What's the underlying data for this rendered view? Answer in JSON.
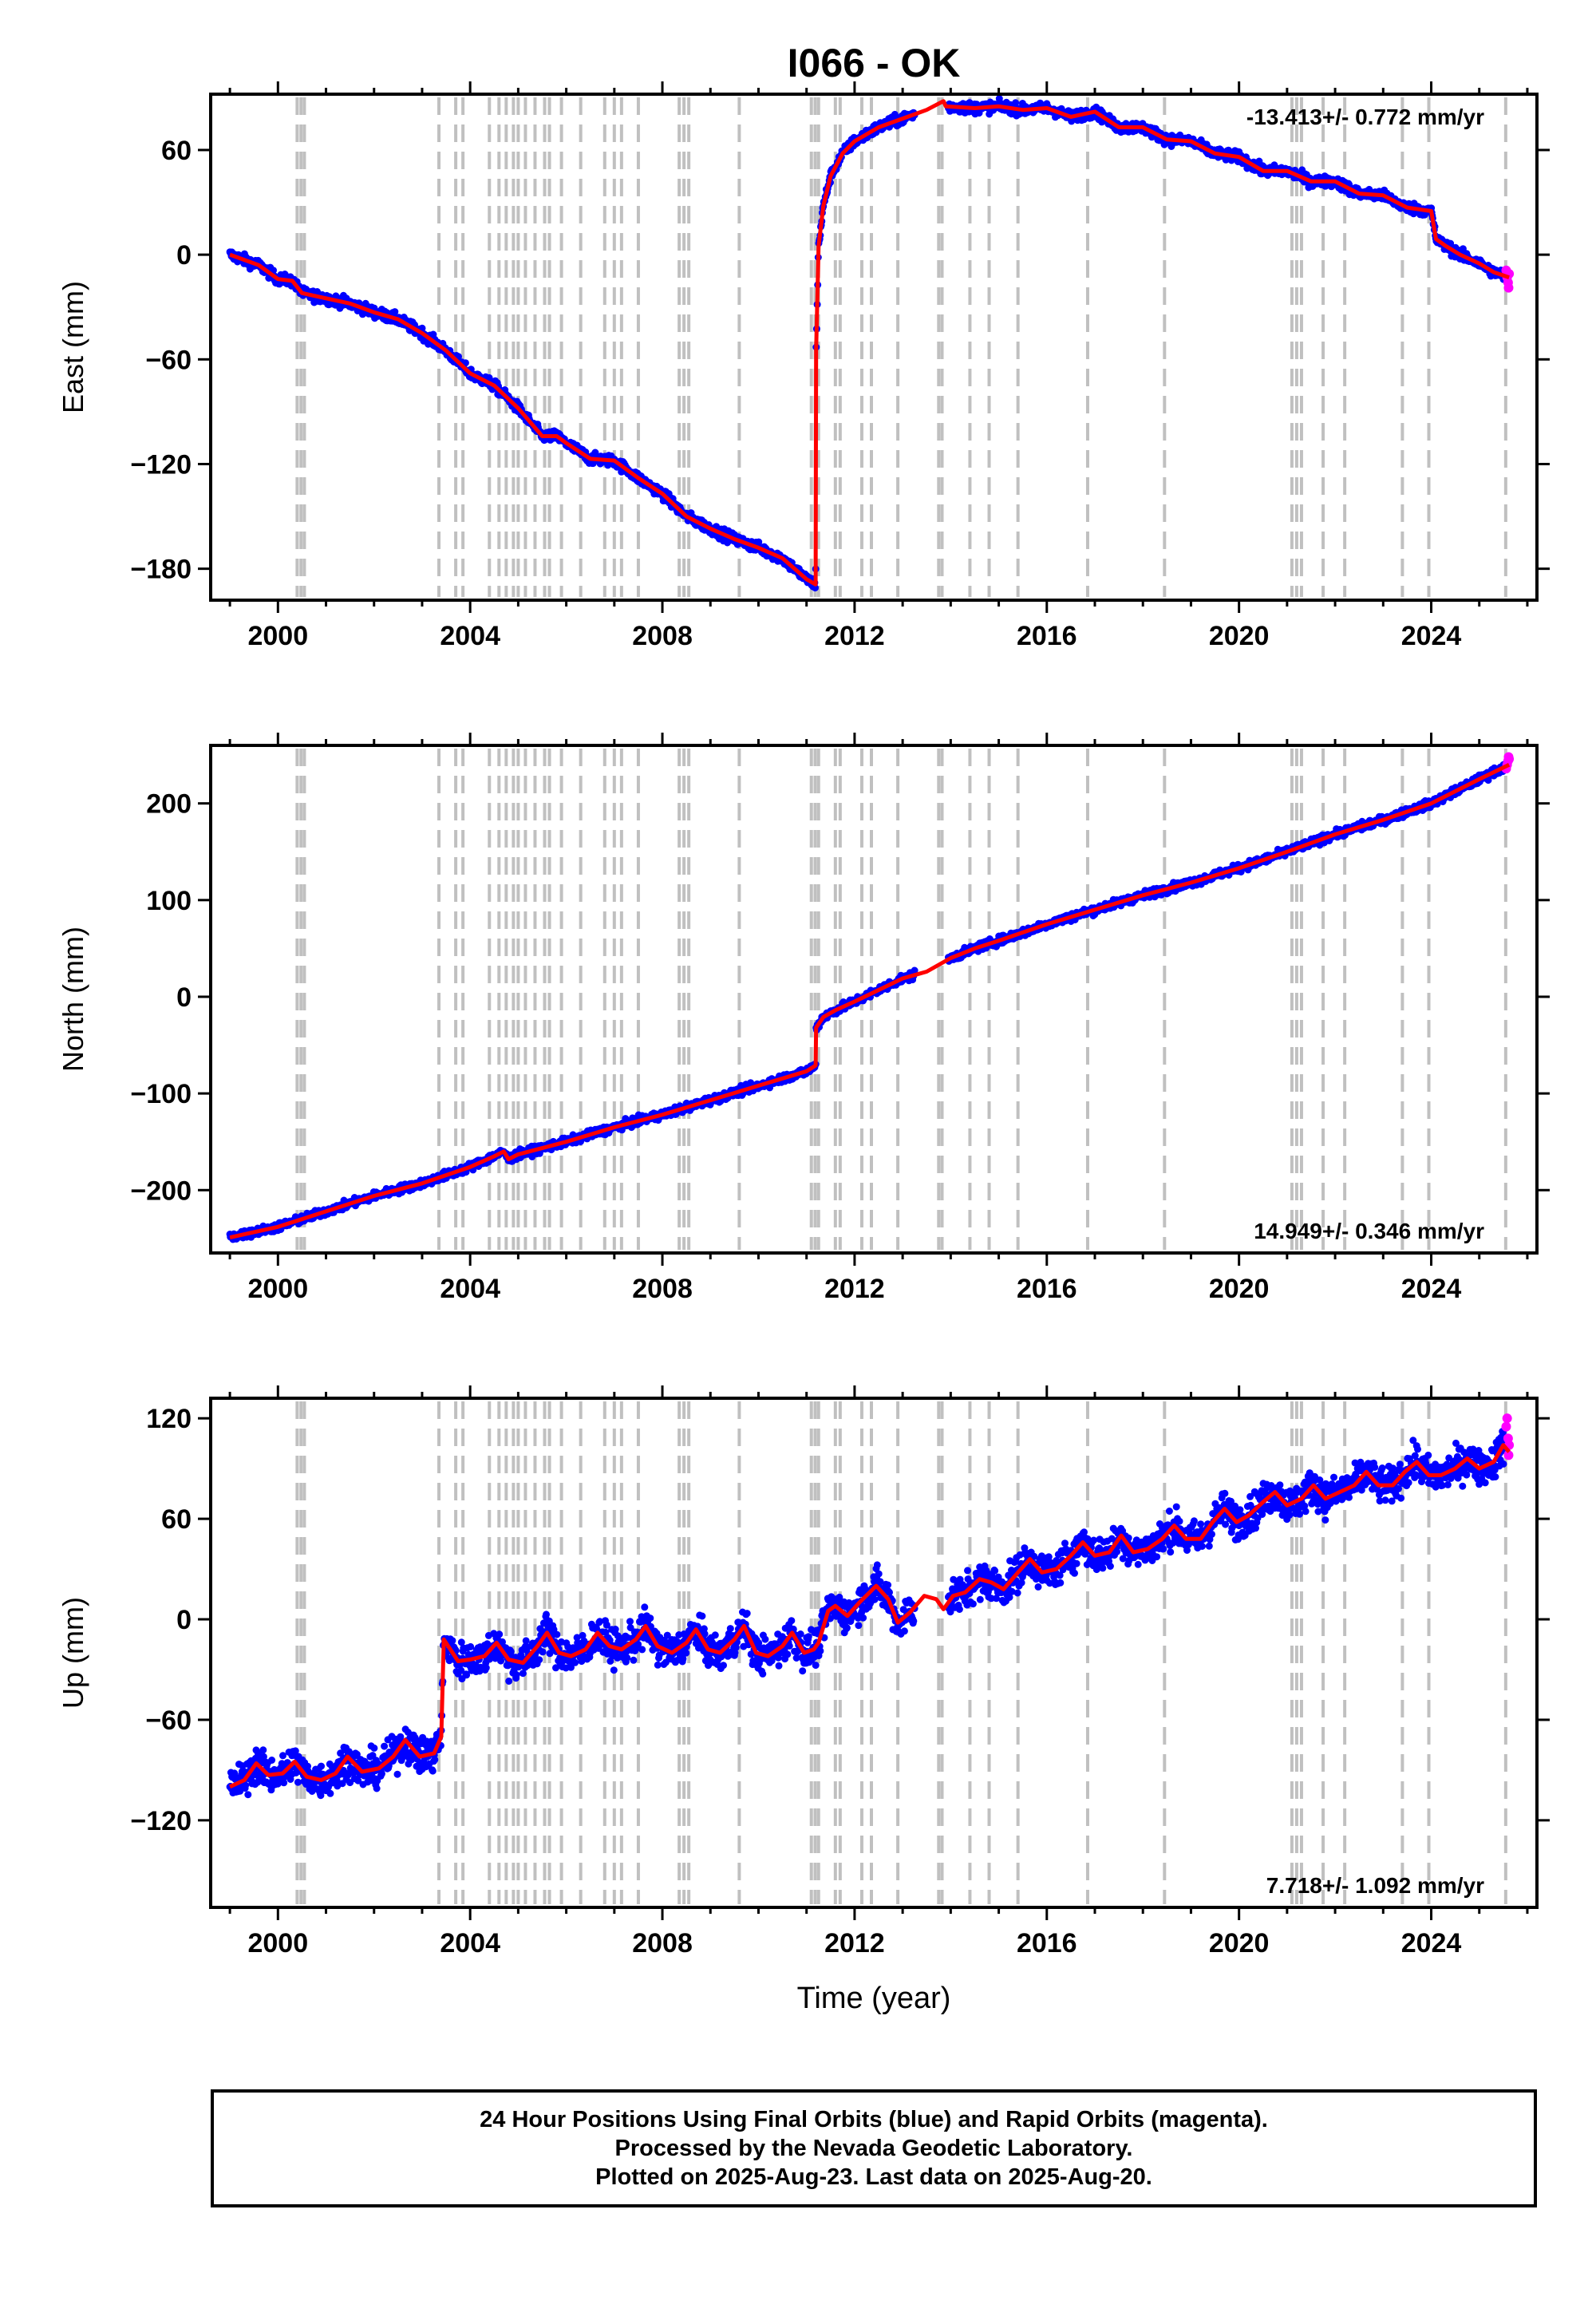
{
  "chart_title": "I066 - OK",
  "x_axis_label": "Time (year)",
  "footer": {
    "line1": "24 Hour Positions Using Final Orbits (blue) and Rapid Orbits (magenta).",
    "line2": "Processed by the Nevada Geodetic Laboratory.",
    "line3": "Plotted on 2025-Aug-23. Last data on 2025-Aug-20."
  },
  "colors": {
    "final_points": "#0000ff",
    "rapid_points": "#ff00ff",
    "model": "#ff0000",
    "equipment_lines": "#c0c0c0"
  },
  "chart_data": [
    {
      "type": "scatter",
      "title": "I066 - OK",
      "ylabel": "East (mm)",
      "xlabel": "",
      "xlim": [
        1998.6,
        2026.2
      ],
      "ylim": [
        -198,
        92
      ],
      "x_ticks": [
        2000,
        2004,
        2008,
        2012,
        2016,
        2020,
        2024
      ],
      "y_ticks": [
        -180,
        -120,
        -60,
        0,
        60
      ],
      "annotation": "-13.413+/- 0.772 mm/yr",
      "model_line": [
        [
          1999.0,
          0
        ],
        [
          1999.6,
          -6
        ],
        [
          2000.0,
          -14
        ],
        [
          2000.3,
          -15
        ],
        [
          2000.5,
          -22
        ],
        [
          2001.0,
          -25
        ],
        [
          2001.5,
          -28
        ],
        [
          2002.0,
          -33
        ],
        [
          2002.5,
          -37
        ],
        [
          2003.0,
          -45
        ],
        [
          2003.5,
          -55
        ],
        [
          2004.0,
          -68
        ],
        [
          2004.5,
          -75
        ],
        [
          2005.0,
          -88
        ],
        [
          2005.5,
          -104
        ],
        [
          2005.8,
          -104
        ],
        [
          2006.0,
          -108
        ],
        [
          2006.5,
          -117
        ],
        [
          2007.0,
          -118
        ],
        [
          2007.5,
          -128
        ],
        [
          2008.0,
          -137
        ],
        [
          2008.5,
          -150
        ],
        [
          2009.0,
          -157
        ],
        [
          2009.5,
          -163
        ],
        [
          2010.0,
          -168
        ],
        [
          2010.5,
          -174
        ],
        [
          2011.0,
          -186
        ],
        [
          2011.19,
          -189
        ],
        [
          2011.2,
          -55
        ],
        [
          2011.25,
          5
        ],
        [
          2011.35,
          28
        ],
        [
          2011.5,
          45
        ],
        [
          2011.75,
          58
        ],
        [
          2012.0,
          65
        ],
        [
          2012.5,
          73
        ],
        [
          2013.0,
          78
        ],
        [
          2013.5,
          83
        ],
        [
          2013.85,
          88
        ],
        [
          2013.9,
          85
        ],
        [
          2014.5,
          84
        ],
        [
          2015.0,
          85
        ],
        [
          2015.5,
          83
        ],
        [
          2016.0,
          84
        ],
        [
          2016.5,
          79
        ],
        [
          2017.0,
          82
        ],
        [
          2017.5,
          73
        ],
        [
          2018.0,
          73
        ],
        [
          2018.5,
          66
        ],
        [
          2019.0,
          65
        ],
        [
          2019.5,
          58
        ],
        [
          2020.0,
          56
        ],
        [
          2020.5,
          48
        ],
        [
          2021.0,
          48
        ],
        [
          2021.5,
          42
        ],
        [
          2022.0,
          42
        ],
        [
          2022.5,
          35
        ],
        [
          2023.0,
          34
        ],
        [
          2023.5,
          27
        ],
        [
          2024.0,
          25
        ],
        [
          2024.1,
          9
        ],
        [
          2024.3,
          5
        ],
        [
          2024.6,
          0
        ],
        [
          2025.0,
          -5
        ],
        [
          2025.3,
          -10
        ],
        [
          2025.62,
          -13
        ]
      ],
      "rapid_points": [
        [
          2025.56,
          -9
        ],
        [
          2025.58,
          -13
        ],
        [
          2025.6,
          -16
        ],
        [
          2025.61,
          -19
        ],
        [
          2025.62,
          -11
        ]
      ],
      "equipment_changes": [
        2000.4,
        2000.48,
        2000.55,
        2003.35,
        2003.7,
        2003.85,
        2004.4,
        2004.6,
        2004.75,
        2004.9,
        2005.0,
        2005.15,
        2005.35,
        2005.55,
        2005.65,
        2005.9,
        2006.3,
        2006.8,
        2007.0,
        2007.15,
        2007.5,
        2008.35,
        2008.45,
        2008.55,
        2009.6,
        2011.1,
        2011.18,
        2011.25,
        2011.6,
        2011.7,
        2012.15,
        2012.35,
        2012.9,
        2013.75,
        2013.82,
        2014.4,
        2014.8,
        2015.4,
        2016.85,
        2018.45,
        2021.1,
        2021.2,
        2021.3,
        2021.75,
        2022.2,
        2023.4,
        2023.95,
        2025.55
      ]
    },
    {
      "type": "scatter",
      "title": "",
      "ylabel": "North (mm)",
      "xlabel": "",
      "xlim": [
        1998.6,
        2026.2
      ],
      "ylim": [
        -265,
        260
      ],
      "x_ticks": [
        2000,
        2004,
        2008,
        2012,
        2016,
        2020,
        2024
      ],
      "y_ticks": [
        -200,
        -100,
        0,
        100,
        200
      ],
      "annotation": "14.949+/- 0.346 mm/yr",
      "model_line": [
        [
          1999.0,
          -249
        ],
        [
          2000.0,
          -238
        ],
        [
          2001.0,
          -222
        ],
        [
          2002.0,
          -206
        ],
        [
          2003.0,
          -193
        ],
        [
          2004.0,
          -176
        ],
        [
          2004.5,
          -165
        ],
        [
          2004.7,
          -160
        ],
        [
          2004.8,
          -168
        ],
        [
          2005.0,
          -163
        ],
        [
          2006.0,
          -150
        ],
        [
          2007.0,
          -135
        ],
        [
          2008.0,
          -122
        ],
        [
          2009.0,
          -107
        ],
        [
          2010.0,
          -92
        ],
        [
          2011.0,
          -77
        ],
        [
          2011.19,
          -71
        ],
        [
          2011.2,
          -32
        ],
        [
          2011.35,
          -21
        ],
        [
          2011.6,
          -14
        ],
        [
          2012.0,
          -5
        ],
        [
          2012.5,
          7
        ],
        [
          2013.0,
          19
        ],
        [
          2013.5,
          26
        ],
        [
          2014.0,
          40
        ],
        [
          2014.5,
          50
        ],
        [
          2015.0,
          58
        ],
        [
          2016.0,
          75
        ],
        [
          2017.0,
          90
        ],
        [
          2018.0,
          105
        ],
        [
          2019.0,
          118
        ],
        [
          2020.0,
          133
        ],
        [
          2021.0,
          150
        ],
        [
          2022.0,
          168
        ],
        [
          2023.0,
          183
        ],
        [
          2024.0,
          200
        ],
        [
          2025.0,
          225
        ],
        [
          2025.62,
          240
        ]
      ],
      "rapid_points": [
        [
          2025.56,
          236
        ],
        [
          2025.58,
          240
        ],
        [
          2025.6,
          244
        ],
        [
          2025.61,
          248
        ],
        [
          2025.62,
          246
        ]
      ],
      "equipment_changes": [
        2000.4,
        2000.48,
        2000.55,
        2003.35,
        2003.7,
        2003.85,
        2004.4,
        2004.6,
        2004.75,
        2004.9,
        2005.0,
        2005.15,
        2005.35,
        2005.55,
        2005.65,
        2005.9,
        2006.3,
        2006.8,
        2007.0,
        2007.15,
        2007.5,
        2008.35,
        2008.45,
        2008.55,
        2009.6,
        2011.1,
        2011.18,
        2011.25,
        2011.6,
        2011.7,
        2012.15,
        2012.35,
        2012.9,
        2013.75,
        2013.82,
        2014.4,
        2014.8,
        2015.4,
        2016.85,
        2018.45,
        2021.1,
        2021.2,
        2021.3,
        2021.75,
        2022.2,
        2023.4,
        2023.95,
        2025.55
      ]
    },
    {
      "type": "scatter",
      "title": "",
      "ylabel": "Up (mm)",
      "xlabel": "Time (year)",
      "xlim": [
        1998.6,
        2026.2
      ],
      "ylim": [
        -172,
        132
      ],
      "x_ticks": [
        2000,
        2004,
        2008,
        2012,
        2016,
        2020,
        2024
      ],
      "y_ticks": [
        -120,
        -60,
        0,
        60,
        120
      ],
      "annotation": "7.718+/- 1.092 mm/yr",
      "model_line": [
        [
          1999.0,
          -100
        ],
        [
          1999.3,
          -96
        ],
        [
          1999.55,
          -86
        ],
        [
          1999.8,
          -93
        ],
        [
          2000.1,
          -92
        ],
        [
          2000.35,
          -85
        ],
        [
          2000.6,
          -94
        ],
        [
          2000.9,
          -96
        ],
        [
          2001.2,
          -92
        ],
        [
          2001.45,
          -82
        ],
        [
          2001.75,
          -91
        ],
        [
          2002.1,
          -89
        ],
        [
          2002.4,
          -82
        ],
        [
          2002.65,
          -72
        ],
        [
          2002.95,
          -82
        ],
        [
          2003.25,
          -80
        ],
        [
          2003.4,
          -70
        ],
        [
          2003.45,
          -12
        ],
        [
          2003.75,
          -25
        ],
        [
          2004.0,
          -24
        ],
        [
          2004.3,
          -22
        ],
        [
          2004.55,
          -14
        ],
        [
          2004.8,
          -24
        ],
        [
          2005.1,
          -26
        ],
        [
          2005.4,
          -16
        ],
        [
          2005.6,
          -8
        ],
        [
          2005.85,
          -20
        ],
        [
          2006.1,
          -22
        ],
        [
          2006.4,
          -18
        ],
        [
          2006.65,
          -8
        ],
        [
          2006.9,
          -16
        ],
        [
          2007.15,
          -18
        ],
        [
          2007.45,
          -12
        ],
        [
          2007.65,
          -4
        ],
        [
          2007.9,
          -16
        ],
        [
          2008.2,
          -20
        ],
        [
          2008.5,
          -14
        ],
        [
          2008.7,
          -6
        ],
        [
          2008.95,
          -18
        ],
        [
          2009.2,
          -20
        ],
        [
          2009.5,
          -12
        ],
        [
          2009.7,
          -4
        ],
        [
          2009.95,
          -20
        ],
        [
          2010.2,
          -22
        ],
        [
          2010.5,
          -16
        ],
        [
          2010.7,
          -8
        ],
        [
          2010.95,
          -20
        ],
        [
          2011.15,
          -18
        ],
        [
          2011.25,
          -14
        ],
        [
          2011.45,
          5
        ],
        [
          2011.6,
          8
        ],
        [
          2011.85,
          2
        ],
        [
          2012.1,
          10
        ],
        [
          2012.45,
          20
        ],
        [
          2012.7,
          12
        ],
        [
          2012.9,
          -2
        ],
        [
          2013.15,
          4
        ],
        [
          2013.45,
          14
        ],
        [
          2013.7,
          12
        ],
        [
          2013.85,
          6
        ],
        [
          2014.05,
          14
        ],
        [
          2014.3,
          16
        ],
        [
          2014.6,
          24
        ],
        [
          2014.85,
          22
        ],
        [
          2015.1,
          18
        ],
        [
          2015.4,
          28
        ],
        [
          2015.65,
          36
        ],
        [
          2015.9,
          28
        ],
        [
          2016.2,
          30
        ],
        [
          2016.5,
          38
        ],
        [
          2016.75,
          46
        ],
        [
          2017.0,
          38
        ],
        [
          2017.3,
          40
        ],
        [
          2017.55,
          50
        ],
        [
          2017.8,
          40
        ],
        [
          2018.1,
          42
        ],
        [
          2018.4,
          48
        ],
        [
          2018.65,
          56
        ],
        [
          2018.9,
          48
        ],
        [
          2019.2,
          48
        ],
        [
          2019.45,
          58
        ],
        [
          2019.7,
          66
        ],
        [
          2019.95,
          58
        ],
        [
          2020.2,
          62
        ],
        [
          2020.5,
          70
        ],
        [
          2020.75,
          76
        ],
        [
          2021.0,
          68
        ],
        [
          2021.3,
          72
        ],
        [
          2021.55,
          80
        ],
        [
          2021.8,
          72
        ],
        [
          2022.1,
          76
        ],
        [
          2022.4,
          80
        ],
        [
          2022.65,
          88
        ],
        [
          2022.9,
          80
        ],
        [
          2023.2,
          80
        ],
        [
          2023.45,
          88
        ],
        [
          2023.7,
          94
        ],
        [
          2023.95,
          86
        ],
        [
          2024.2,
          86
        ],
        [
          2024.5,
          90
        ],
        [
          2024.75,
          96
        ],
        [
          2025.0,
          90
        ],
        [
          2025.3,
          94
        ],
        [
          2025.5,
          104
        ],
        [
          2025.62,
          100
        ]
      ],
      "rapid_points": [
        [
          2025.56,
          115
        ],
        [
          2025.58,
          120
        ],
        [
          2025.6,
          108
        ],
        [
          2025.61,
          98
        ],
        [
          2025.62,
          104
        ]
      ],
      "equipment_changes": [
        2000.4,
        2000.48,
        2000.55,
        2003.35,
        2003.7,
        2003.85,
        2004.4,
        2004.6,
        2004.75,
        2004.9,
        2005.0,
        2005.15,
        2005.35,
        2005.55,
        2005.65,
        2005.9,
        2006.3,
        2006.8,
        2007.0,
        2007.15,
        2007.5,
        2008.35,
        2008.45,
        2008.55,
        2009.6,
        2011.1,
        2011.18,
        2011.25,
        2011.6,
        2011.7,
        2012.15,
        2012.35,
        2012.9,
        2013.75,
        2013.82,
        2014.4,
        2014.8,
        2015.4,
        2016.85,
        2018.45,
        2021.1,
        2021.2,
        2021.3,
        2021.75,
        2022.2,
        2023.4,
        2023.95,
        2025.55
      ]
    }
  ]
}
